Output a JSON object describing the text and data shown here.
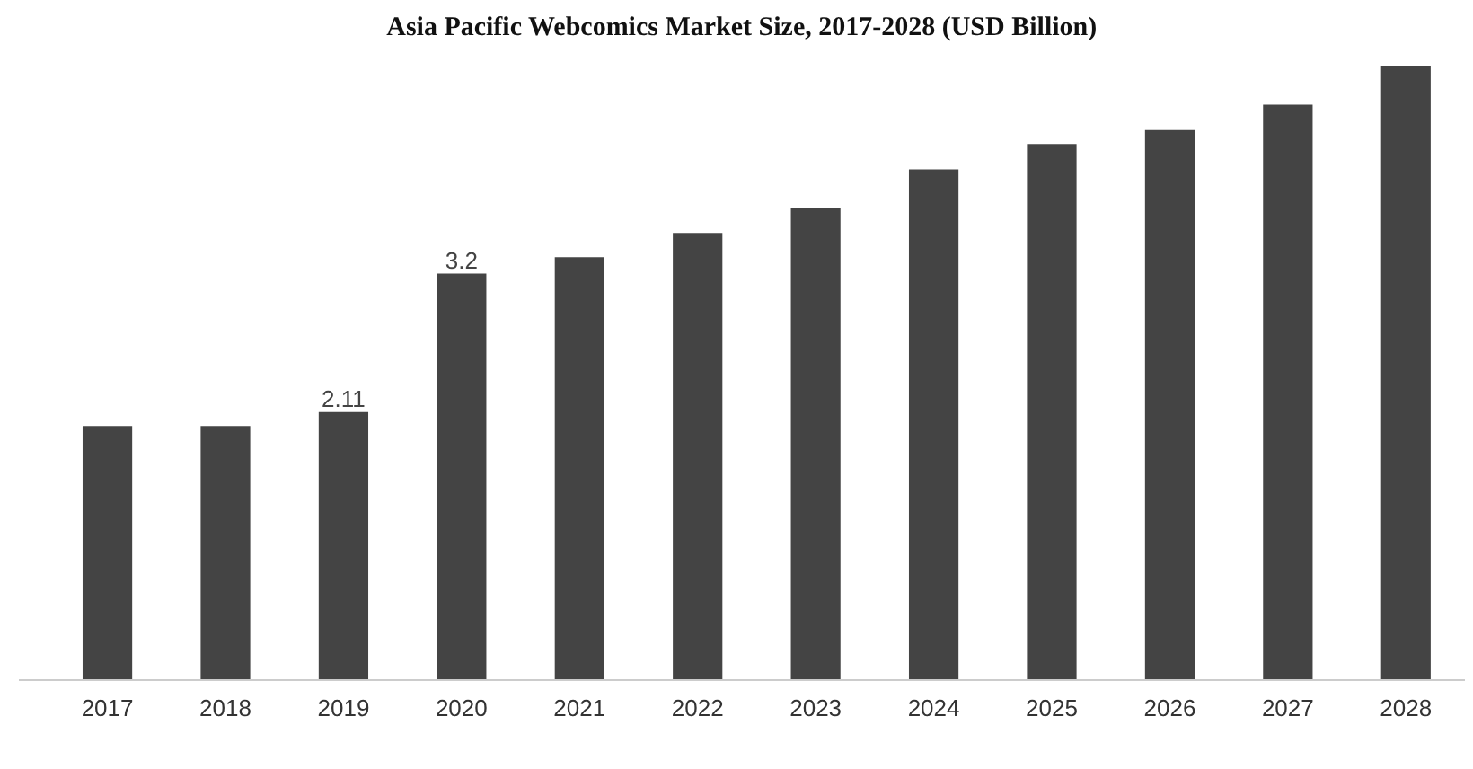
{
  "chart_data": {
    "type": "bar",
    "title": "Asia Pacific Webcomics Market Size, 2017-2028 (USD Billion)",
    "categories": [
      "2017",
      "2018",
      "2019",
      "2020",
      "2021",
      "2022",
      "2023",
      "2024",
      "2025",
      "2026",
      "2027",
      "2028"
    ],
    "values": [
      2.0,
      2.0,
      2.11,
      3.2,
      3.33,
      3.52,
      3.72,
      4.02,
      4.22,
      4.33,
      4.53,
      4.83
    ],
    "value_labels": [
      null,
      null,
      "2.11",
      "3.2",
      null,
      null,
      null,
      null,
      null,
      null,
      null,
      null
    ],
    "color": "#444444",
    "grid": false
  }
}
